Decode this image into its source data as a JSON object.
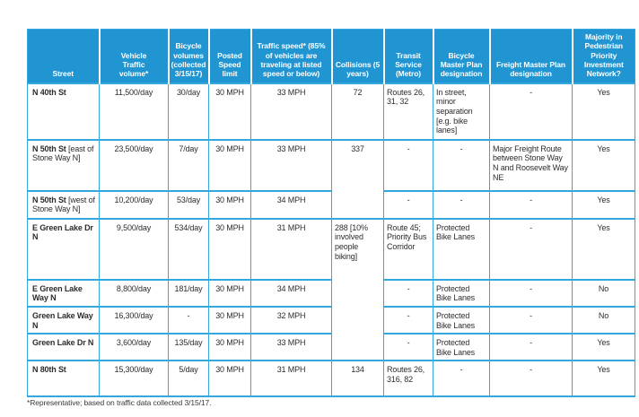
{
  "colors": {
    "header_bg": "#2095d2",
    "grid": "#35a7df",
    "header_text": "#ffffff",
    "body_text": "#2d2d2d"
  },
  "table": {
    "columns": [
      {
        "id": "street",
        "label": "Street"
      },
      {
        "id": "vehicle-volume",
        "label": "Vehicle Traffic volume*"
      },
      {
        "id": "bicycle-volume",
        "label": "Bicycle volumes (collected 3/15/17)"
      },
      {
        "id": "posted-speed",
        "label": "Posted Speed limit"
      },
      {
        "id": "traffic-speed",
        "label": "Traffic speed* (85% of vehicles are traveling at listed speed or below)"
      },
      {
        "id": "collisions",
        "label": "Collisions (5 years)"
      },
      {
        "id": "transit-service",
        "label": "Transit Service (Metro)"
      },
      {
        "id": "bicycle-master-plan",
        "label": "Bicycle Master Plan designation"
      },
      {
        "id": "freight-master-plan",
        "label": "Freight Master Plan designation"
      },
      {
        "id": "pedestrian-network",
        "label": "Majority in Pedestrian Priority Investment Network?"
      }
    ],
    "rows": [
      {
        "street": "N 40th St",
        "street_note": "",
        "cells": [
          {
            "v": "11,500/day"
          },
          {
            "v": "30/day"
          },
          {
            "v": "30 MPH"
          },
          {
            "v": "33 MPH"
          },
          {
            "v": "72"
          },
          {
            "v": "Routes 26, 31, 32"
          },
          {
            "v": "In street, minor separation [e.g. bike lanes]"
          },
          {
            "v": "-"
          },
          {
            "v": "Yes"
          }
        ]
      },
      {
        "street": "N 50th St",
        "street_note": "[east of Stone Way N]",
        "cells": [
          {
            "v": "23,500/day"
          },
          {
            "v": "7/day"
          },
          {
            "v": "30 MPH"
          },
          {
            "v": "33 MPH"
          },
          {
            "v": "337",
            "rowspan": 2
          },
          {
            "v": "-"
          },
          {
            "v": "-"
          },
          {
            "v": "Major Freight Route between Stone Way N and Roosevelt Way NE"
          },
          {
            "v": "Yes"
          }
        ]
      },
      {
        "street": "N 50th St",
        "street_note": "[west of Stone Way N]",
        "cells": [
          {
            "v": "10,200/day"
          },
          {
            "v": "53/day"
          },
          {
            "v": "30 MPH"
          },
          {
            "v": "34 MPH"
          },
          {
            "v": "-"
          },
          {
            "v": "-"
          },
          {
            "v": "-"
          },
          {
            "v": "Yes"
          }
        ]
      },
      {
        "street": "E Green Lake Dr N",
        "street_note": "",
        "cells": [
          {
            "v": "9,500/day"
          },
          {
            "v": "534/day"
          },
          {
            "v": "30 MPH"
          },
          {
            "v": "31 MPH"
          },
          {
            "v": "288 [10% involved people biking]",
            "rowspan": 4
          },
          {
            "v": "Route 45; Priority Bus Corridor"
          },
          {
            "v": "Protected Bike Lanes"
          },
          {
            "v": "-"
          },
          {
            "v": "Yes"
          }
        ]
      },
      {
        "street": "E Green Lake Way N",
        "street_note": "",
        "cells": [
          {
            "v": "8,800/day"
          },
          {
            "v": "181/day"
          },
          {
            "v": "30 MPH"
          },
          {
            "v": "34 MPH"
          },
          {
            "v": "-"
          },
          {
            "v": "Protected Bike Lanes"
          },
          {
            "v": "-"
          },
          {
            "v": "No"
          }
        ]
      },
      {
        "street": "Green Lake Way N",
        "street_note": "",
        "cells": [
          {
            "v": "16,300/day"
          },
          {
            "v": "-"
          },
          {
            "v": "30 MPH"
          },
          {
            "v": "32 MPH"
          },
          {
            "v": "-"
          },
          {
            "v": "Protected Bike Lanes"
          },
          {
            "v": "-"
          },
          {
            "v": "No"
          }
        ]
      },
      {
        "street": "Green Lake Dr N",
        "street_note": "",
        "cells": [
          {
            "v": "3,600/day"
          },
          {
            "v": "135/day"
          },
          {
            "v": "30 MPH"
          },
          {
            "v": "33 MPH"
          },
          {
            "v": "-"
          },
          {
            "v": "Protected Bike Lanes"
          },
          {
            "v": "-"
          },
          {
            "v": "Yes"
          }
        ]
      },
      {
        "street": "N 80th St",
        "street_note": "",
        "cells": [
          {
            "v": "15,300/day"
          },
          {
            "v": "5/day"
          },
          {
            "v": "30 MPH"
          },
          {
            "v": "31 MPH"
          },
          {
            "v": "134"
          },
          {
            "v": "Routes 26, 316, 82"
          },
          {
            "v": "-"
          },
          {
            "v": "-"
          },
          {
            "v": "Yes"
          }
        ]
      }
    ]
  },
  "footnote": "*Representative; based on traffic data collected 3/15/17."
}
